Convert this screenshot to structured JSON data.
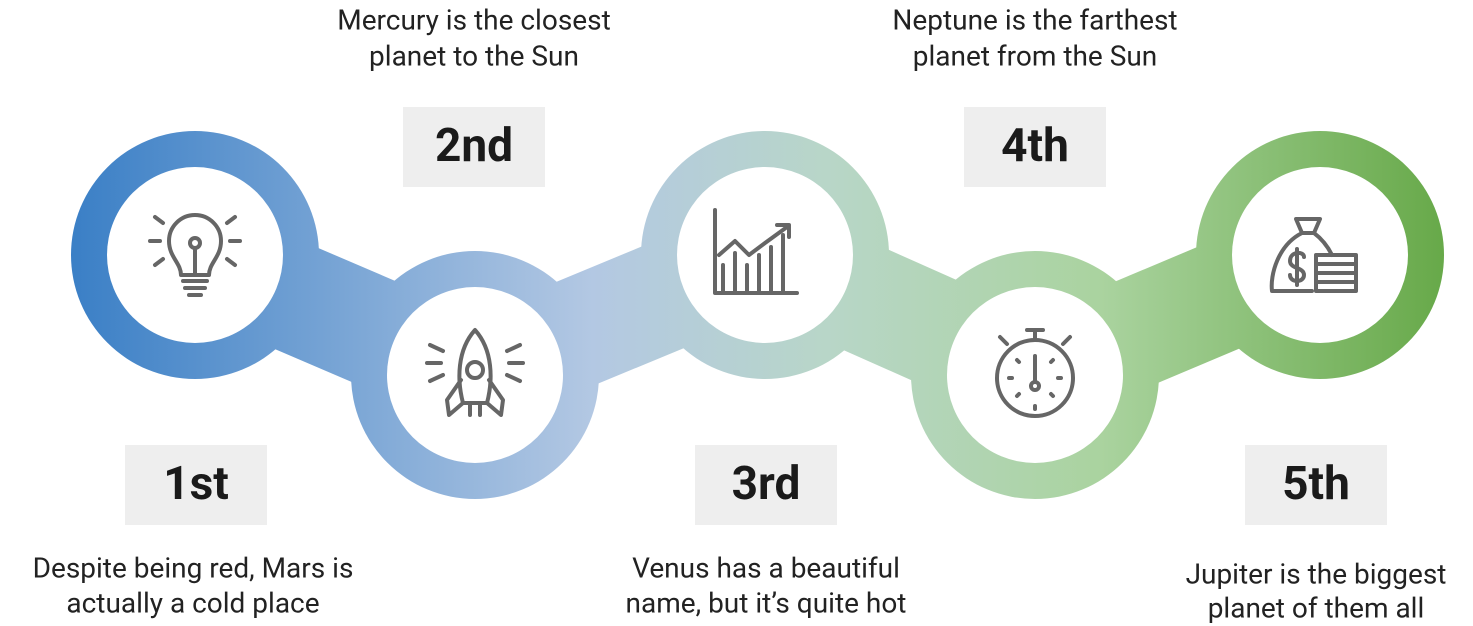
{
  "items": [
    {
      "rank": "1st",
      "lines": [
        "Despite being red, Mars is",
        "actually a cold place"
      ]
    },
    {
      "rank": "2nd",
      "lines": [
        "Mercury is the closest",
        "planet to the Sun"
      ]
    },
    {
      "rank": "3rd",
      "lines": [
        "Venus has a beautiful",
        "name, but it’s quite hot"
      ]
    },
    {
      "rank": "4th",
      "lines": [
        "Neptune is the farthest",
        "planet from the Sun"
      ]
    },
    {
      "rank": "5th",
      "lines": [
        "Jupiter is the biggest",
        "planet of them all"
      ]
    }
  ]
}
